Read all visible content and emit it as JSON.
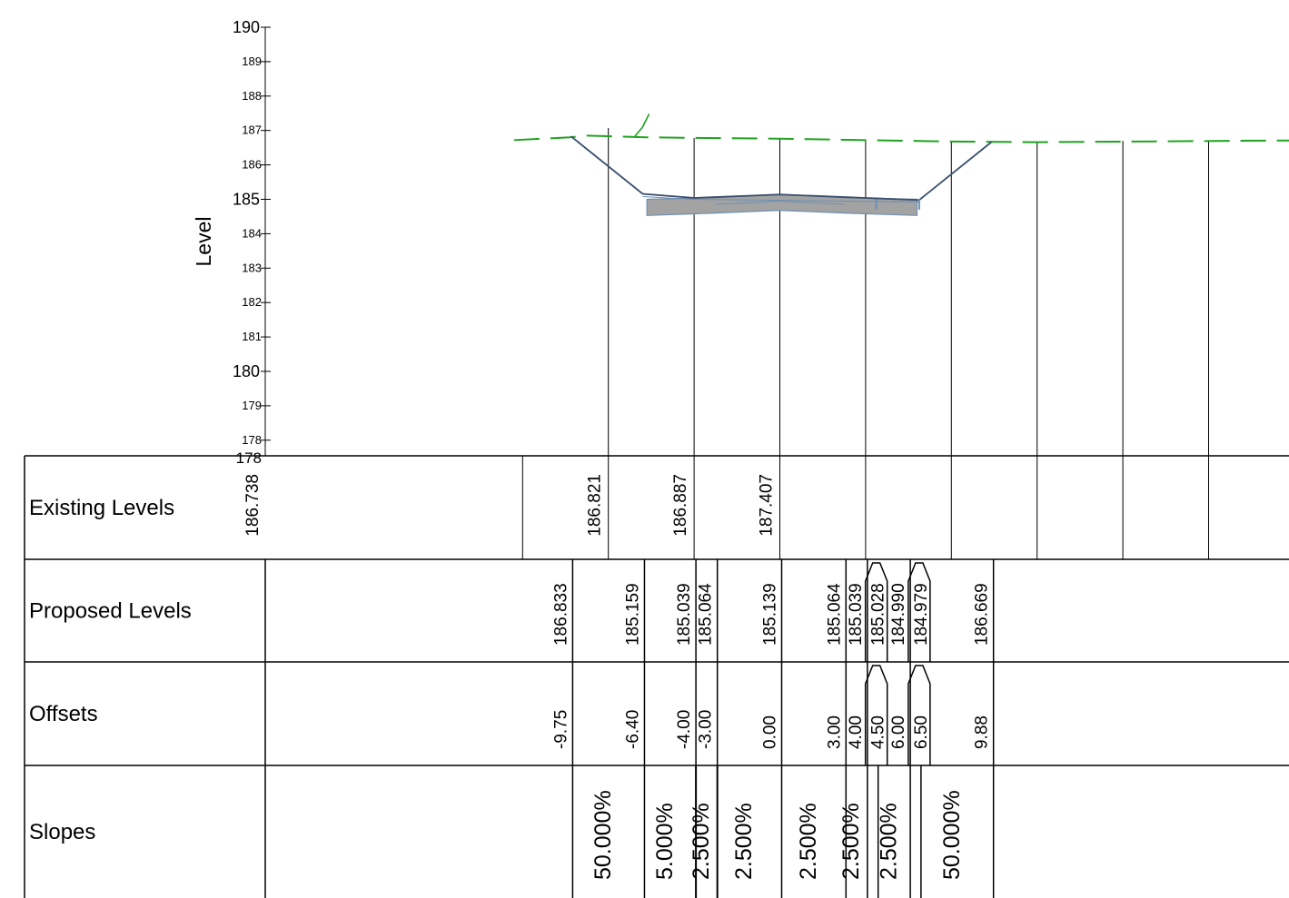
{
  "chart_data": {
    "type": "line",
    "ylabel": "Level",
    "ylim": [
      178,
      190
    ],
    "y_ticks": [
      190,
      189,
      188,
      187,
      186,
      185,
      184,
      183,
      182,
      181,
      180,
      179,
      178
    ],
    "y_axis_bottom_label": "178",
    "grid": false,
    "legend": "none",
    "colors": {
      "existing": "#1fa31f",
      "proposed": "#3a4e6e",
      "pavement_fill": "#a3a3a3",
      "pavement_edge": "#6f8fb0",
      "lines": "#000000"
    },
    "series": [
      {
        "role": "existing",
        "points": [
          [
            -12.0,
            186.738
          ],
          [
            -9.8,
            186.821
          ],
          [
            -9.0,
            186.887
          ],
          [
            -6.2,
            187.407
          ],
          [
            -6.6,
            186.79
          ],
          [
            -4.0,
            186.78
          ],
          [
            0.0,
            186.76
          ],
          [
            4.0,
            186.72
          ],
          [
            8.0,
            186.7
          ],
          [
            10.0,
            186.67
          ],
          [
            16.0,
            186.7
          ]
        ]
      },
      {
        "role": "proposed",
        "points": [
          [
            -9.75,
            186.833
          ],
          [
            -6.4,
            185.159
          ],
          [
            -4.0,
            185.039
          ],
          [
            -3.0,
            185.064
          ],
          [
            0.0,
            185.139
          ],
          [
            3.0,
            185.064
          ],
          [
            4.0,
            185.039
          ],
          [
            4.5,
            185.028
          ],
          [
            6.0,
            184.99
          ],
          [
            6.5,
            184.979
          ],
          [
            9.88,
            186.669
          ]
        ]
      }
    ],
    "table": {
      "rows": [
        {
          "label": "Existing Levels",
          "values": [
            {
              "x": -12.0,
              "text": "186.738"
            },
            {
              "x": -8.0,
              "text": "186.821"
            },
            {
              "x": -4.0,
              "text": "186.887"
            },
            {
              "x": 0.0,
              "text": "187.407"
            }
          ]
        },
        {
          "label": "Proposed Levels",
          "values": [
            {
              "x": -9.75,
              "text": "186.833"
            },
            {
              "x": -6.4,
              "text": "185.159"
            },
            {
              "x": -4.0,
              "text": "185.039"
            },
            {
              "x": -3.0,
              "text": "185.064"
            },
            {
              "x": 0.0,
              "text": "185.139"
            },
            {
              "x": 3.0,
              "text": "185.064"
            },
            {
              "x": 4.0,
              "text": "185.039"
            },
            {
              "x": 4.5,
              "text": "185.028"
            },
            {
              "x": 6.0,
              "text": "184.990"
            },
            {
              "x": 6.5,
              "text": "184.979"
            },
            {
              "x": 9.88,
              "text": "186.669"
            }
          ]
        },
        {
          "label": "Offsets",
          "values": [
            {
              "x": -9.75,
              "text": "-9.75"
            },
            {
              "x": -6.4,
              "text": "-6.40"
            },
            {
              "x": -4.0,
              "text": "-4.00"
            },
            {
              "x": -3.0,
              "text": "-3.00"
            },
            {
              "x": 0.0,
              "text": "0.00"
            },
            {
              "x": 3.0,
              "text": "3.00"
            },
            {
              "x": 4.0,
              "text": "4.00"
            },
            {
              "x": 4.5,
              "text": "4.50"
            },
            {
              "x": 6.0,
              "text": "6.00"
            },
            {
              "x": 6.5,
              "text": "6.50"
            },
            {
              "x": 9.88,
              "text": "9.88"
            }
          ]
        },
        {
          "label": "Slopes",
          "values": [
            {
              "from": -9.75,
              "to": -6.4,
              "text": "50.000%"
            },
            {
              "from": -6.4,
              "to": -4.0,
              "text": "5.000%"
            },
            {
              "from": -4.0,
              "to": -3.0,
              "text": "2.500%"
            },
            {
              "from": -3.0,
              "to": 0.0,
              "text": "2.500%"
            },
            {
              "from": 0.0,
              "to": 3.0,
              "text": "2.500%"
            },
            {
              "from": 3.0,
              "to": 4.0,
              "text": "2.500%"
            },
            {
              "from": 4.5,
              "to": 6.0,
              "text": "2.500%"
            },
            {
              "from": 6.5,
              "to": 9.88,
              "text": "50.000%"
            }
          ]
        }
      ]
    }
  }
}
